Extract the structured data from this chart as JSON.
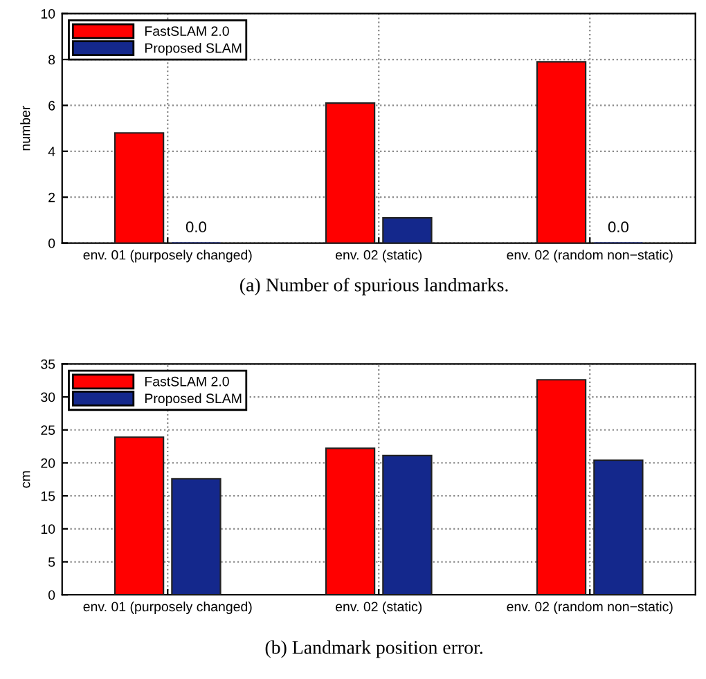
{
  "chart_data": [
    {
      "type": "bar",
      "title": "(a) Number of spurious landmarks.",
      "ylabel": "number",
      "categories": [
        "env. 01 (purposely changed)",
        "env. 02 (static)",
        "env. 02 (random non−static)"
      ],
      "series": [
        {
          "name": "FastSLAM 2.0",
          "color": "#ff0000",
          "values": [
            4.8,
            6.1,
            7.9
          ]
        },
        {
          "name": "Proposed SLAM",
          "color": "#14288c",
          "values": [
            0,
            1.1,
            0
          ],
          "value_labels": [
            "0.0",
            null,
            "0.0"
          ]
        }
      ],
      "ylim": [
        0,
        10
      ],
      "yticks": [
        0,
        2,
        4,
        6,
        8,
        10
      ],
      "grid": true,
      "legend": "top left"
    },
    {
      "type": "bar",
      "title": "(b) Landmark position error.",
      "ylabel": "cm",
      "categories": [
        "env. 01 (purposely changed)",
        "env. 02 (static)",
        "env. 02 (random non−static)"
      ],
      "series": [
        {
          "name": "FastSLAM 2.0",
          "color": "#ff0000",
          "values": [
            23.9,
            22.2,
            32.6
          ]
        },
        {
          "name": "Proposed SLAM",
          "color": "#14288c",
          "values": [
            17.6,
            21.1,
            20.4
          ]
        }
      ],
      "ylim": [
        0,
        35
      ],
      "yticks": [
        0,
        5,
        10,
        15,
        20,
        25,
        30,
        35
      ],
      "grid": true,
      "legend": "top left"
    }
  ]
}
